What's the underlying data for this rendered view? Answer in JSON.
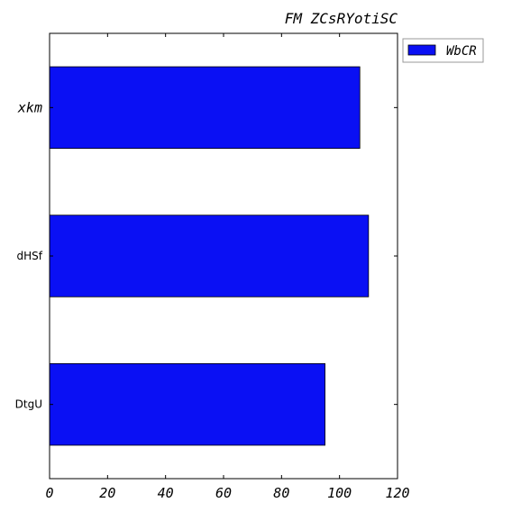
{
  "chart_data": {
    "type": "bar",
    "orientation": "horizontal",
    "title": "FM ZCsRYotiSC",
    "xlabel": "",
    "ylabel": "",
    "categories": [
      "xkm",
      "dHSf",
      "DtgU"
    ],
    "series": [
      {
        "name": "WbCR",
        "values": [
          107,
          110,
          95
        ],
        "color": "#0a10f4"
      }
    ],
    "xlim": [
      0,
      120
    ],
    "xticks": [
      0,
      20,
      40,
      60,
      80,
      100,
      120
    ],
    "grid": false,
    "legend_position": "outside-top-right"
  }
}
